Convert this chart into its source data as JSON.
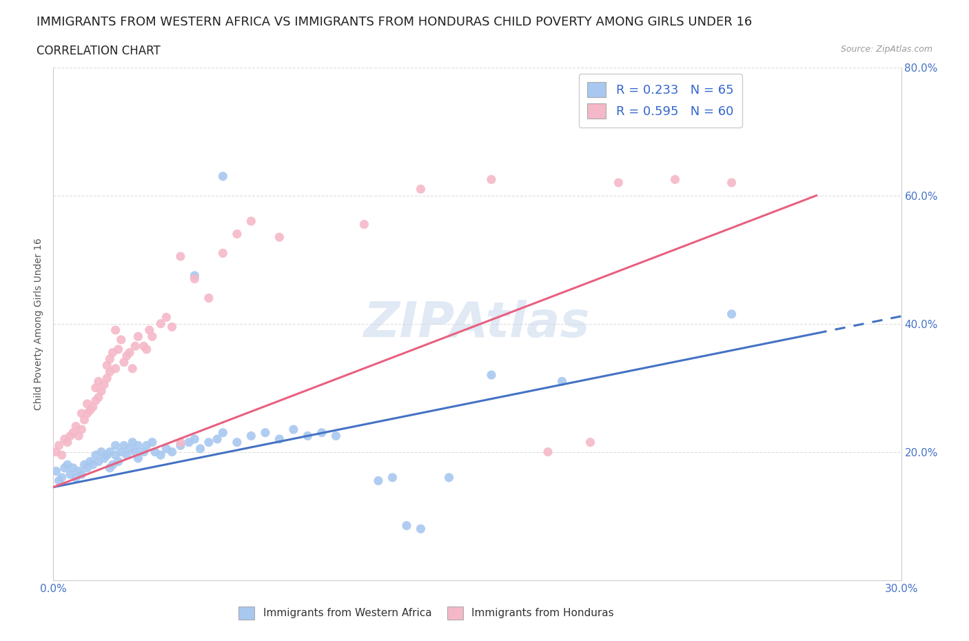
{
  "title": "IMMIGRANTS FROM WESTERN AFRICA VS IMMIGRANTS FROM HONDURAS CHILD POVERTY AMONG GIRLS UNDER 16",
  "subtitle": "CORRELATION CHART",
  "source": "Source: ZipAtlas.com",
  "ylabel": "Child Poverty Among Girls Under 16",
  "xlim": [
    0.0,
    0.3
  ],
  "ylim": [
    0.0,
    0.8
  ],
  "xticks": [
    0.0,
    0.05,
    0.1,
    0.15,
    0.2,
    0.25,
    0.3
  ],
  "yticks": [
    0.0,
    0.2,
    0.4,
    0.6,
    0.8
  ],
  "xticklabels": [
    "0.0%",
    "",
    "",
    "",
    "",
    "",
    "30.0%"
  ],
  "yticklabels": [
    "",
    "20.0%",
    "40.0%",
    "60.0%",
    "80.0%"
  ],
  "blue_color": "#A8C8F0",
  "pink_color": "#F5B8C8",
  "blue_line_color": "#4472C4",
  "pink_line_color": "#E86080",
  "R_blue": 0.233,
  "N_blue": 65,
  "R_pink": 0.595,
  "N_pink": 60,
  "legend_label_blue": "Immigrants from Western Africa",
  "legend_label_pink": "Immigrants from Honduras",
  "watermark": "ZIPAtlas",
  "title_fontsize": 13,
  "subtitle_fontsize": 12,
  "blue_line": [
    0.0,
    0.145,
    0.27,
    0.385
  ],
  "pink_line": [
    0.0,
    0.145,
    0.27,
    0.6
  ],
  "blue_scatter": [
    [
      0.001,
      0.17
    ],
    [
      0.002,
      0.155
    ],
    [
      0.003,
      0.16
    ],
    [
      0.004,
      0.175
    ],
    [
      0.005,
      0.18
    ],
    [
      0.006,
      0.165
    ],
    [
      0.007,
      0.175
    ],
    [
      0.008,
      0.16
    ],
    [
      0.009,
      0.17
    ],
    [
      0.01,
      0.165
    ],
    [
      0.011,
      0.18
    ],
    [
      0.012,
      0.175
    ],
    [
      0.013,
      0.185
    ],
    [
      0.014,
      0.18
    ],
    [
      0.015,
      0.195
    ],
    [
      0.016,
      0.185
    ],
    [
      0.017,
      0.2
    ],
    [
      0.018,
      0.19
    ],
    [
      0.019,
      0.195
    ],
    [
      0.02,
      0.2
    ],
    [
      0.02,
      0.175
    ],
    [
      0.021,
      0.18
    ],
    [
      0.022,
      0.195
    ],
    [
      0.022,
      0.21
    ],
    [
      0.023,
      0.185
    ],
    [
      0.024,
      0.2
    ],
    [
      0.025,
      0.21
    ],
    [
      0.026,
      0.195
    ],
    [
      0.027,
      0.205
    ],
    [
      0.028,
      0.215
    ],
    [
      0.029,
      0.2
    ],
    [
      0.03,
      0.21
    ],
    [
      0.03,
      0.19
    ],
    [
      0.032,
      0.2
    ],
    [
      0.033,
      0.21
    ],
    [
      0.035,
      0.215
    ],
    [
      0.036,
      0.2
    ],
    [
      0.038,
      0.195
    ],
    [
      0.04,
      0.205
    ],
    [
      0.042,
      0.2
    ],
    [
      0.045,
      0.21
    ],
    [
      0.048,
      0.215
    ],
    [
      0.05,
      0.22
    ],
    [
      0.052,
      0.205
    ],
    [
      0.055,
      0.215
    ],
    [
      0.058,
      0.22
    ],
    [
      0.06,
      0.23
    ],
    [
      0.065,
      0.215
    ],
    [
      0.07,
      0.225
    ],
    [
      0.075,
      0.23
    ],
    [
      0.08,
      0.22
    ],
    [
      0.085,
      0.235
    ],
    [
      0.09,
      0.225
    ],
    [
      0.095,
      0.23
    ],
    [
      0.1,
      0.225
    ],
    [
      0.115,
      0.155
    ],
    [
      0.12,
      0.16
    ],
    [
      0.06,
      0.63
    ],
    [
      0.05,
      0.475
    ],
    [
      0.14,
      0.16
    ],
    [
      0.155,
      0.32
    ],
    [
      0.18,
      0.31
    ],
    [
      0.24,
      0.415
    ],
    [
      0.13,
      0.08
    ],
    [
      0.125,
      0.085
    ]
  ],
  "pink_scatter": [
    [
      0.001,
      0.2
    ],
    [
      0.002,
      0.21
    ],
    [
      0.003,
      0.195
    ],
    [
      0.004,
      0.22
    ],
    [
      0.005,
      0.215
    ],
    [
      0.006,
      0.225
    ],
    [
      0.007,
      0.23
    ],
    [
      0.008,
      0.24
    ],
    [
      0.009,
      0.225
    ],
    [
      0.01,
      0.235
    ],
    [
      0.01,
      0.26
    ],
    [
      0.011,
      0.25
    ],
    [
      0.012,
      0.26
    ],
    [
      0.012,
      0.275
    ],
    [
      0.013,
      0.265
    ],
    [
      0.014,
      0.27
    ],
    [
      0.015,
      0.28
    ],
    [
      0.015,
      0.3
    ],
    [
      0.016,
      0.285
    ],
    [
      0.016,
      0.31
    ],
    [
      0.017,
      0.295
    ],
    [
      0.018,
      0.305
    ],
    [
      0.019,
      0.315
    ],
    [
      0.019,
      0.335
    ],
    [
      0.02,
      0.325
    ],
    [
      0.02,
      0.345
    ],
    [
      0.021,
      0.355
    ],
    [
      0.022,
      0.33
    ],
    [
      0.022,
      0.39
    ],
    [
      0.023,
      0.36
    ],
    [
      0.024,
      0.375
    ],
    [
      0.025,
      0.34
    ],
    [
      0.026,
      0.35
    ],
    [
      0.027,
      0.355
    ],
    [
      0.028,
      0.33
    ],
    [
      0.029,
      0.365
    ],
    [
      0.03,
      0.38
    ],
    [
      0.032,
      0.365
    ],
    [
      0.033,
      0.36
    ],
    [
      0.034,
      0.39
    ],
    [
      0.035,
      0.38
    ],
    [
      0.038,
      0.4
    ],
    [
      0.04,
      0.41
    ],
    [
      0.042,
      0.395
    ],
    [
      0.045,
      0.505
    ],
    [
      0.05,
      0.47
    ],
    [
      0.055,
      0.44
    ],
    [
      0.06,
      0.51
    ],
    [
      0.065,
      0.54
    ],
    [
      0.07,
      0.56
    ],
    [
      0.08,
      0.535
    ],
    [
      0.11,
      0.555
    ],
    [
      0.13,
      0.61
    ],
    [
      0.155,
      0.625
    ],
    [
      0.175,
      0.2
    ],
    [
      0.19,
      0.215
    ],
    [
      0.2,
      0.62
    ],
    [
      0.22,
      0.625
    ],
    [
      0.24,
      0.62
    ],
    [
      0.045,
      0.215
    ]
  ]
}
